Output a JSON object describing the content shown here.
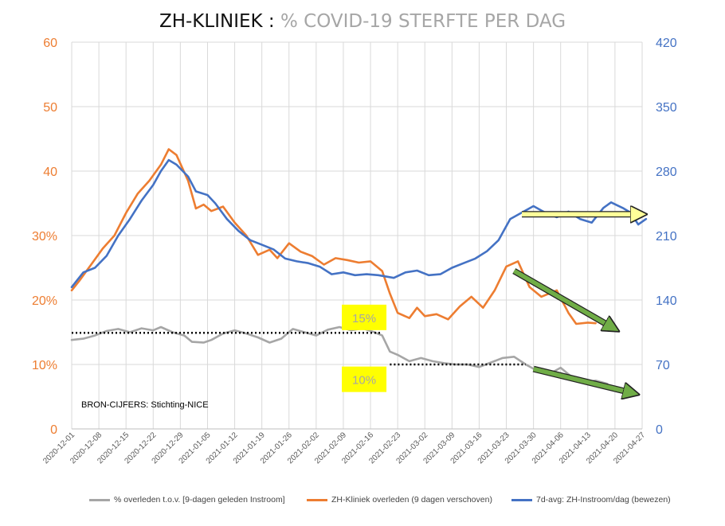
{
  "title": {
    "main": "ZH-KLINIEK :",
    "sub": "% COVID-19 STERFTE PER DAG"
  },
  "source_note": "BRON-CIJFERS: Stichting-NICE",
  "colors": {
    "gray": "#a6a6a6",
    "orange": "#ed7d31",
    "blue": "#4472c4",
    "highlight": "#ffff00",
    "arrow_yellow": "#ffff99",
    "arrow_green": "#70ad47",
    "left_axis": "#ed7d31",
    "right_axis": "#4472c4"
  },
  "chart_data": {
    "type": "line",
    "grid": "vertical-and-horizontal",
    "x_tick_labels": [
      "2020-12-01",
      "2020-12-08",
      "2020-12-15",
      "2020-12-22",
      "2020-12-29",
      "2021-01-05",
      "2021-01-12",
      "2021-01-19",
      "2021-01-26",
      "2021-02-02",
      "2021-02-09",
      "2021-02-16",
      "2021-02-23",
      "2021-03-02",
      "2021-03-09",
      "2021-03-16",
      "2021-03-23",
      "2021-03-30",
      "2021-04-06",
      "2021-04-13",
      "2021-04-20",
      "2021-04-27"
    ],
    "x_range": [
      "2020-12-01",
      "2021-04-27"
    ],
    "left_axis": {
      "ticks": [
        "0",
        "10%",
        "20%",
        "30%",
        "40",
        "50",
        "60"
      ],
      "range": [
        0,
        60
      ]
    },
    "right_axis": {
      "ticks": [
        "0",
        "70",
        "140",
        "210",
        "280",
        "350",
        "420"
      ],
      "range": [
        0,
        420
      ]
    },
    "series": [
      {
        "name": "% overleden t.o.v. [9-dagen geleden Instroom]",
        "axis": "left",
        "points": [
          [
            "2020-12-01",
            13.8
          ],
          [
            "2020-12-04",
            14.0
          ],
          [
            "2020-12-07",
            14.5
          ],
          [
            "2020-12-10",
            15.2
          ],
          [
            "2020-12-13",
            15.5
          ],
          [
            "2020-12-16",
            15.0
          ],
          [
            "2020-12-19",
            15.6
          ],
          [
            "2020-12-22",
            15.3
          ],
          [
            "2020-12-24",
            15.8
          ],
          [
            "2020-12-27",
            15.0
          ],
          [
            "2020-12-30",
            14.5
          ],
          [
            "2021-01-01",
            13.5
          ],
          [
            "2021-01-04",
            13.4
          ],
          [
            "2021-01-06",
            13.8
          ],
          [
            "2021-01-09",
            14.8
          ],
          [
            "2021-01-12",
            15.3
          ],
          [
            "2021-01-15",
            14.8
          ],
          [
            "2021-01-18",
            14.2
          ],
          [
            "2021-01-21",
            13.4
          ],
          [
            "2021-01-24",
            14.0
          ],
          [
            "2021-01-27",
            15.5
          ],
          [
            "2021-01-30",
            15.0
          ],
          [
            "2021-02-02",
            14.5
          ],
          [
            "2021-02-05",
            15.4
          ],
          [
            "2021-02-08",
            15.8
          ],
          [
            "2021-02-11",
            15.3
          ],
          [
            "2021-02-14",
            15.6
          ],
          [
            "2021-02-17",
            15.0
          ],
          [
            "2021-02-19",
            14.5
          ],
          [
            "2021-02-21",
            12.0
          ],
          [
            "2021-02-23",
            11.5
          ],
          [
            "2021-02-26",
            10.5
          ],
          [
            "2021-03-01",
            11.0
          ],
          [
            "2021-03-04",
            10.5
          ],
          [
            "2021-03-07",
            10.2
          ],
          [
            "2021-03-10",
            10.0
          ],
          [
            "2021-03-13",
            10.0
          ],
          [
            "2021-03-16",
            9.6
          ],
          [
            "2021-03-19",
            10.3
          ],
          [
            "2021-03-22",
            11.0
          ],
          [
            "2021-03-25",
            11.2
          ],
          [
            "2021-03-28",
            10.0
          ],
          [
            "2021-03-31",
            9.0
          ],
          [
            "2021-04-03",
            8.5
          ],
          [
            "2021-04-06",
            9.5
          ],
          [
            "2021-04-09",
            8.0
          ],
          [
            "2021-04-12",
            7.2
          ],
          [
            "2021-04-15",
            7.5
          ],
          [
            "2021-04-18",
            7.0
          ]
        ]
      },
      {
        "name": "ZH-Kliniek overleden (9 dagen verschoven)",
        "axis": "left",
        "points": [
          [
            "2020-12-01",
            21.5
          ],
          [
            "2020-12-03",
            23.0
          ],
          [
            "2020-12-06",
            25.5
          ],
          [
            "2020-12-09",
            28.0
          ],
          [
            "2020-12-12",
            30.0
          ],
          [
            "2020-12-15",
            33.5
          ],
          [
            "2020-12-18",
            36.5
          ],
          [
            "2020-12-21",
            38.5
          ],
          [
            "2020-12-24",
            41.0
          ],
          [
            "2020-12-26",
            43.4
          ],
          [
            "2020-12-28",
            42.5
          ],
          [
            "2020-12-31",
            38.5
          ],
          [
            "2021-01-02",
            34.2
          ],
          [
            "2021-01-04",
            34.8
          ],
          [
            "2021-01-06",
            33.8
          ],
          [
            "2021-01-09",
            34.5
          ],
          [
            "2021-01-12",
            32.0
          ],
          [
            "2021-01-15",
            30.0
          ],
          [
            "2021-01-18",
            27.0
          ],
          [
            "2021-01-21",
            27.8
          ],
          [
            "2021-01-23",
            26.5
          ],
          [
            "2021-01-26",
            28.8
          ],
          [
            "2021-01-29",
            27.5
          ],
          [
            "2021-02-01",
            26.8
          ],
          [
            "2021-02-04",
            25.5
          ],
          [
            "2021-02-07",
            26.5
          ],
          [
            "2021-02-10",
            26.2
          ],
          [
            "2021-02-13",
            25.8
          ],
          [
            "2021-02-16",
            26.0
          ],
          [
            "2021-02-19",
            24.5
          ],
          [
            "2021-02-21",
            21.0
          ],
          [
            "2021-02-23",
            18.0
          ],
          [
            "2021-02-26",
            17.2
          ],
          [
            "2021-02-28",
            18.8
          ],
          [
            "2021-03-02",
            17.5
          ],
          [
            "2021-03-05",
            17.8
          ],
          [
            "2021-03-08",
            17.0
          ],
          [
            "2021-03-11",
            19.0
          ],
          [
            "2021-03-14",
            20.5
          ],
          [
            "2021-03-17",
            18.8
          ],
          [
            "2021-03-20",
            21.5
          ],
          [
            "2021-03-23",
            25.2
          ],
          [
            "2021-03-26",
            26.0
          ],
          [
            "2021-03-29",
            22.0
          ],
          [
            "2021-04-01",
            20.5
          ],
          [
            "2021-04-03",
            21.0
          ],
          [
            "2021-04-05",
            21.5
          ],
          [
            "2021-04-08",
            18.0
          ],
          [
            "2021-04-10",
            16.3
          ],
          [
            "2021-04-13",
            16.5
          ],
          [
            "2021-04-15",
            16.4
          ]
        ]
      },
      {
        "name": "7d-avg: ZH-Instroom/dag (bewezen)",
        "axis": "right",
        "points": [
          [
            "2020-12-01",
            154
          ],
          [
            "2020-12-04",
            170
          ],
          [
            "2020-12-07",
            175
          ],
          [
            "2020-12-10",
            188
          ],
          [
            "2020-12-13",
            210
          ],
          [
            "2020-12-16",
            228
          ],
          [
            "2020-12-19",
            248
          ],
          [
            "2020-12-22",
            265
          ],
          [
            "2020-12-24",
            280
          ],
          [
            "2020-12-26",
            292
          ],
          [
            "2020-12-28",
            287
          ],
          [
            "2020-12-31",
            274
          ],
          [
            "2021-01-02",
            258
          ],
          [
            "2021-01-05",
            254
          ],
          [
            "2021-01-07",
            245
          ],
          [
            "2021-01-10",
            228
          ],
          [
            "2021-01-13",
            215
          ],
          [
            "2021-01-16",
            205
          ],
          [
            "2021-01-19",
            200
          ],
          [
            "2021-01-22",
            195
          ],
          [
            "2021-01-25",
            185
          ],
          [
            "2021-01-28",
            182
          ],
          [
            "2021-01-31",
            180
          ],
          [
            "2021-02-03",
            176
          ],
          [
            "2021-02-06",
            168
          ],
          [
            "2021-02-09",
            170
          ],
          [
            "2021-02-12",
            167
          ],
          [
            "2021-02-15",
            168
          ],
          [
            "2021-02-18",
            167
          ],
          [
            "2021-02-22",
            164
          ],
          [
            "2021-02-25",
            170
          ],
          [
            "2021-02-28",
            172
          ],
          [
            "2021-03-03",
            167
          ],
          [
            "2021-03-06",
            168
          ],
          [
            "2021-03-09",
            175
          ],
          [
            "2021-03-12",
            180
          ],
          [
            "2021-03-15",
            185
          ],
          [
            "2021-03-18",
            193
          ],
          [
            "2021-03-21",
            205
          ],
          [
            "2021-03-24",
            228
          ],
          [
            "2021-03-27",
            235
          ],
          [
            "2021-03-30",
            242
          ],
          [
            "2021-04-02",
            235
          ],
          [
            "2021-04-05",
            230
          ],
          [
            "2021-04-08",
            236
          ],
          [
            "2021-04-11",
            228
          ],
          [
            "2021-04-14",
            224
          ],
          [
            "2021-04-17",
            240
          ],
          [
            "2021-04-19",
            246
          ],
          [
            "2021-04-22",
            240
          ],
          [
            "2021-04-24",
            235
          ],
          [
            "2021-04-26",
            222
          ],
          [
            "2021-04-28",
            228
          ]
        ]
      }
    ],
    "annotations": [
      {
        "label": "15%",
        "x": "2021-02-16",
        "y": 17.3,
        "axis": "left"
      },
      {
        "label": "10%",
        "x": "2021-02-16",
        "y": 7.7,
        "axis": "left"
      }
    ],
    "reference_lines": [
      {
        "from": [
          "2020-12-01",
          14.9
        ],
        "to": [
          "2021-02-19",
          14.9
        ]
      },
      {
        "from": [
          "2021-02-21",
          10.0
        ],
        "to": [
          "2021-03-28",
          10.0
        ]
      }
    ],
    "trend_arrows": [
      {
        "color": "yellow",
        "from": [
          "2021-03-27",
          33.3
        ],
        "to": [
          "2021-04-27",
          33.3
        ]
      },
      {
        "color": "green",
        "from": [
          "2021-03-25",
          24.5
        ],
        "to": [
          "2021-04-20",
          15.5
        ]
      },
      {
        "color": "green",
        "from": [
          "2021-03-30",
          9.3
        ],
        "to": [
          "2021-04-25",
          5.5
        ]
      }
    ]
  }
}
